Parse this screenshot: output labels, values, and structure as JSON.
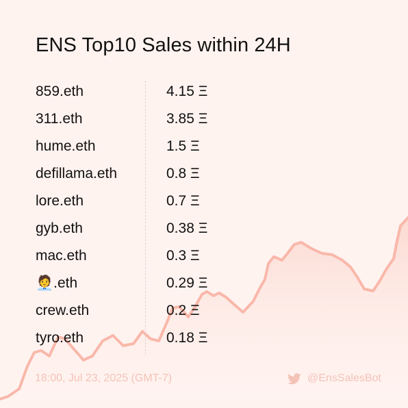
{
  "title": "ENS Top10 Sales within 24H",
  "sales": [
    {
      "name": "859.eth",
      "price": "4.15 Ξ"
    },
    {
      "name": "311.eth",
      "price": "3.85 Ξ"
    },
    {
      "name": "hume.eth",
      "price": "1.5 Ξ"
    },
    {
      "name": "defillama.eth",
      "price": "0.8 Ξ"
    },
    {
      "name": "lore.eth",
      "price": "0.7 Ξ"
    },
    {
      "name": "gyb.eth",
      "price": "0.38 Ξ"
    },
    {
      "name": "mac.eth",
      "price": "0.3 Ξ"
    },
    {
      "name": "🧑‍💼.eth",
      "price": "0.29 Ξ"
    },
    {
      "name": "crew.eth",
      "price": "0.2 Ξ"
    },
    {
      "name": "tyro.eth",
      "price": "0.18 Ξ"
    }
  ],
  "footer": {
    "timestamp": "18:00, Jul 23, 2025 (GMT-7)",
    "handle": "@EnsSalesBot",
    "icon": "twitter-icon"
  },
  "colors": {
    "background": "#fff3f0",
    "accent_line": "#f9b8aa",
    "footer_text": "#f3c3b8"
  }
}
